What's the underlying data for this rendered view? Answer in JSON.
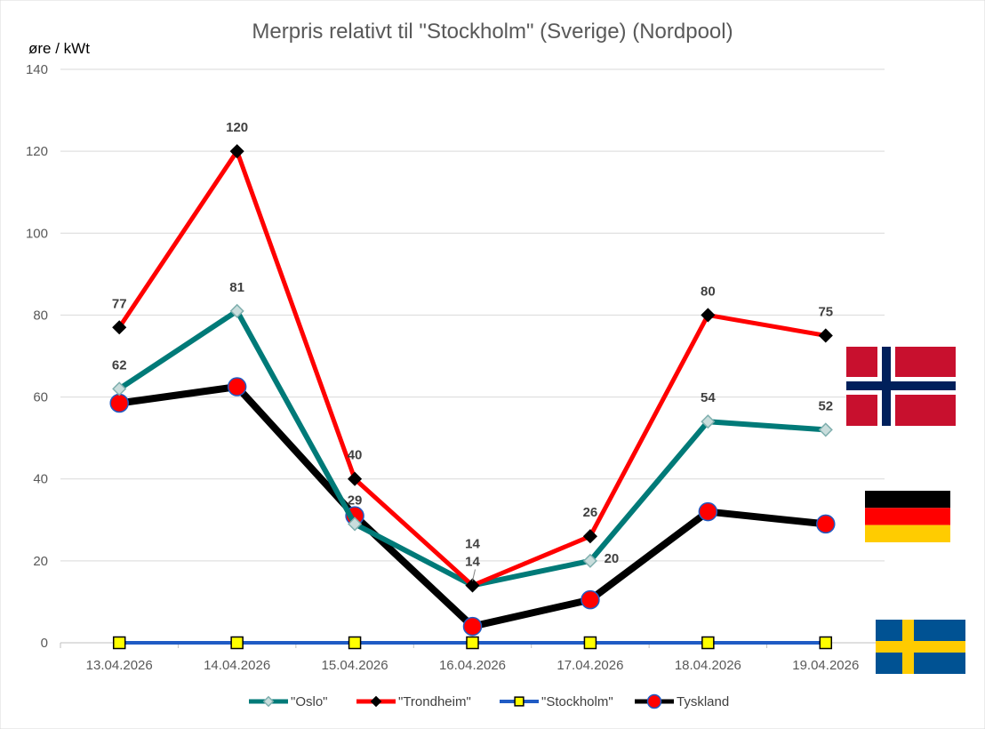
{
  "chart_data": {
    "type": "line",
    "title": "Merpris relativt til \"Stockholm\" (Sverige) (Nordpool)",
    "ylabel": "øre / kWt",
    "xlabel": "",
    "ylim": [
      0,
      140
    ],
    "yticks": [
      0,
      20,
      40,
      60,
      80,
      100,
      120,
      140
    ],
    "grid": true,
    "legend": "bottom",
    "categories": [
      "13.04.2026",
      "14.04.2026",
      "15.04.2026",
      "16.04.2026",
      "17.04.2026",
      "18.04.2026",
      "19.04.2026"
    ],
    "series": [
      {
        "name": "\"Oslo\"",
        "values": [
          62,
          81,
          29,
          14,
          20,
          54,
          52
        ],
        "labels": [
          "62",
          "81",
          "29",
          "14",
          "20",
          "54",
          "52"
        ],
        "color": "#007A78",
        "marker": "diamond",
        "marker_fill": "#C9DDDC"
      },
      {
        "name": "\"Trondheim\"",
        "values": [
          77,
          120,
          40,
          14,
          26,
          80,
          75
        ],
        "labels": [
          "77",
          "120",
          "40",
          "14",
          "26",
          "80",
          "75"
        ],
        "color": "#FF0000",
        "marker": "diamond",
        "marker_fill": "#000000"
      },
      {
        "name": "\"Stockholm\"",
        "values": [
          0,
          0,
          0,
          0,
          0,
          0,
          0
        ],
        "color": "#1F5BC4",
        "marker": "square",
        "marker_fill": "#FFFF00"
      },
      {
        "name": "Tyskland",
        "values": [
          58.5,
          62.5,
          31,
          4,
          10.5,
          32,
          29
        ],
        "color": "#000000",
        "marker": "circle",
        "marker_fill": "#FF0000"
      }
    ],
    "flags": [
      {
        "icon": "norway-flag-icon"
      },
      {
        "icon": "germany-flag-icon"
      },
      {
        "icon": "sweden-flag-icon"
      }
    ]
  }
}
